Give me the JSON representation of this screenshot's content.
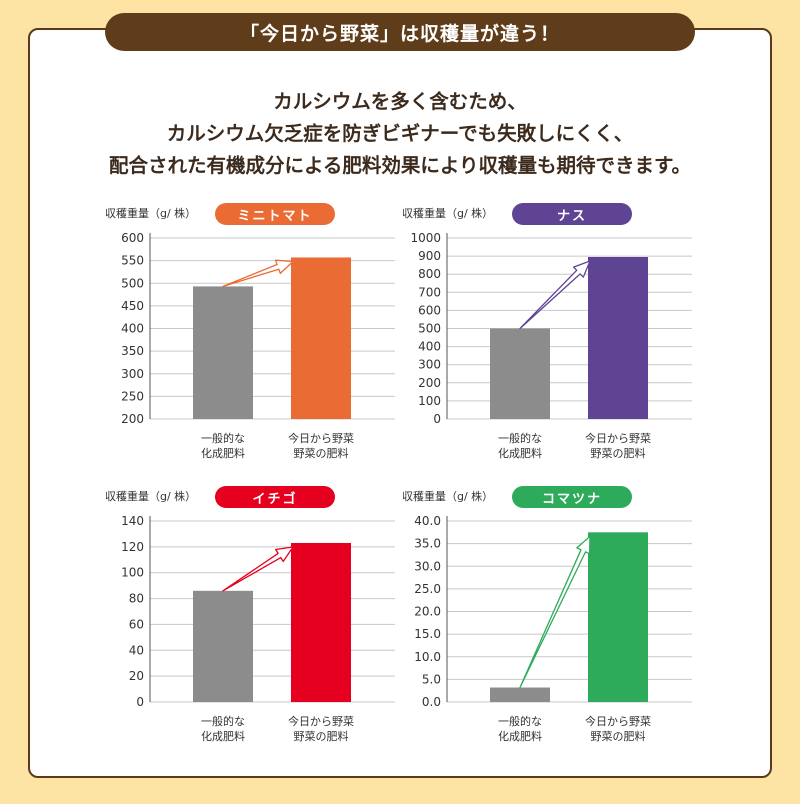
{
  "banner": "「今日から野菜」は収穫量が違う！",
  "intro": [
    "カルシウムを多く含むため、",
    "カルシウム欠乏症を防ぎビギナーでも失敗しにくく、",
    "配合された有機成分による肥料効果により収穫量も期待できます。"
  ],
  "categories": [
    [
      "一般的な",
      "化成肥料"
    ],
    [
      "今日から野菜",
      "野菜の肥料"
    ]
  ],
  "chart_data": [
    {
      "type": "bar",
      "title": "ミニトマト",
      "ylabel": "収穫重量（g/ 株）",
      "color": "#ea6b34",
      "baseline_color": "#8c8c8c",
      "categories": [
        "一般的な化成肥料",
        "今日から野菜 野菜の肥料"
      ],
      "values": [
        493,
        557
      ],
      "ylim": [
        200,
        600
      ],
      "yticks": [
        "600",
        "550",
        "500",
        "450",
        "400",
        "350",
        "300",
        "250",
        "200"
      ],
      "grid": true
    },
    {
      "type": "bar",
      "title": "ナス",
      "ylabel": "収穫重量（g/ 株）",
      "color": "#5f4493",
      "baseline_color": "#8c8c8c",
      "categories": [
        "一般的な化成肥料",
        "今日から野菜 野菜の肥料"
      ],
      "values": [
        500,
        895
      ],
      "ylim": [
        0,
        1000
      ],
      "yticks": [
        "1000",
        "900",
        "800",
        "700",
        "600",
        "500",
        "400",
        "300",
        "200",
        "100",
        "0"
      ],
      "grid": true
    },
    {
      "type": "bar",
      "title": "イチゴ",
      "ylabel": "収穫重量（g/ 株）",
      "color": "#e5001f",
      "baseline_color": "#8c8c8c",
      "categories": [
        "一般的な化成肥料",
        "今日から野菜 野菜の肥料"
      ],
      "values": [
        86,
        123
      ],
      "ylim": [
        0,
        140
      ],
      "yticks": [
        "140",
        "120",
        "100",
        "80",
        "60",
        "40",
        "20",
        "0"
      ],
      "grid": true
    },
    {
      "type": "bar",
      "title": "コマツナ",
      "ylabel": "収穫重量（g/ 株）",
      "color": "#2eaa5b",
      "baseline_color": "#8c8c8c",
      "categories": [
        "一般的な化成肥料",
        "今日から野菜 野菜の肥料"
      ],
      "values": [
        3.2,
        37.5
      ],
      "ylim": [
        0,
        40
      ],
      "yticks": [
        "40.0",
        "35.0",
        "30.0",
        "25.0",
        "20.0",
        "15.0",
        "10.0",
        "5.0",
        "0.0"
      ],
      "grid": true
    }
  ]
}
